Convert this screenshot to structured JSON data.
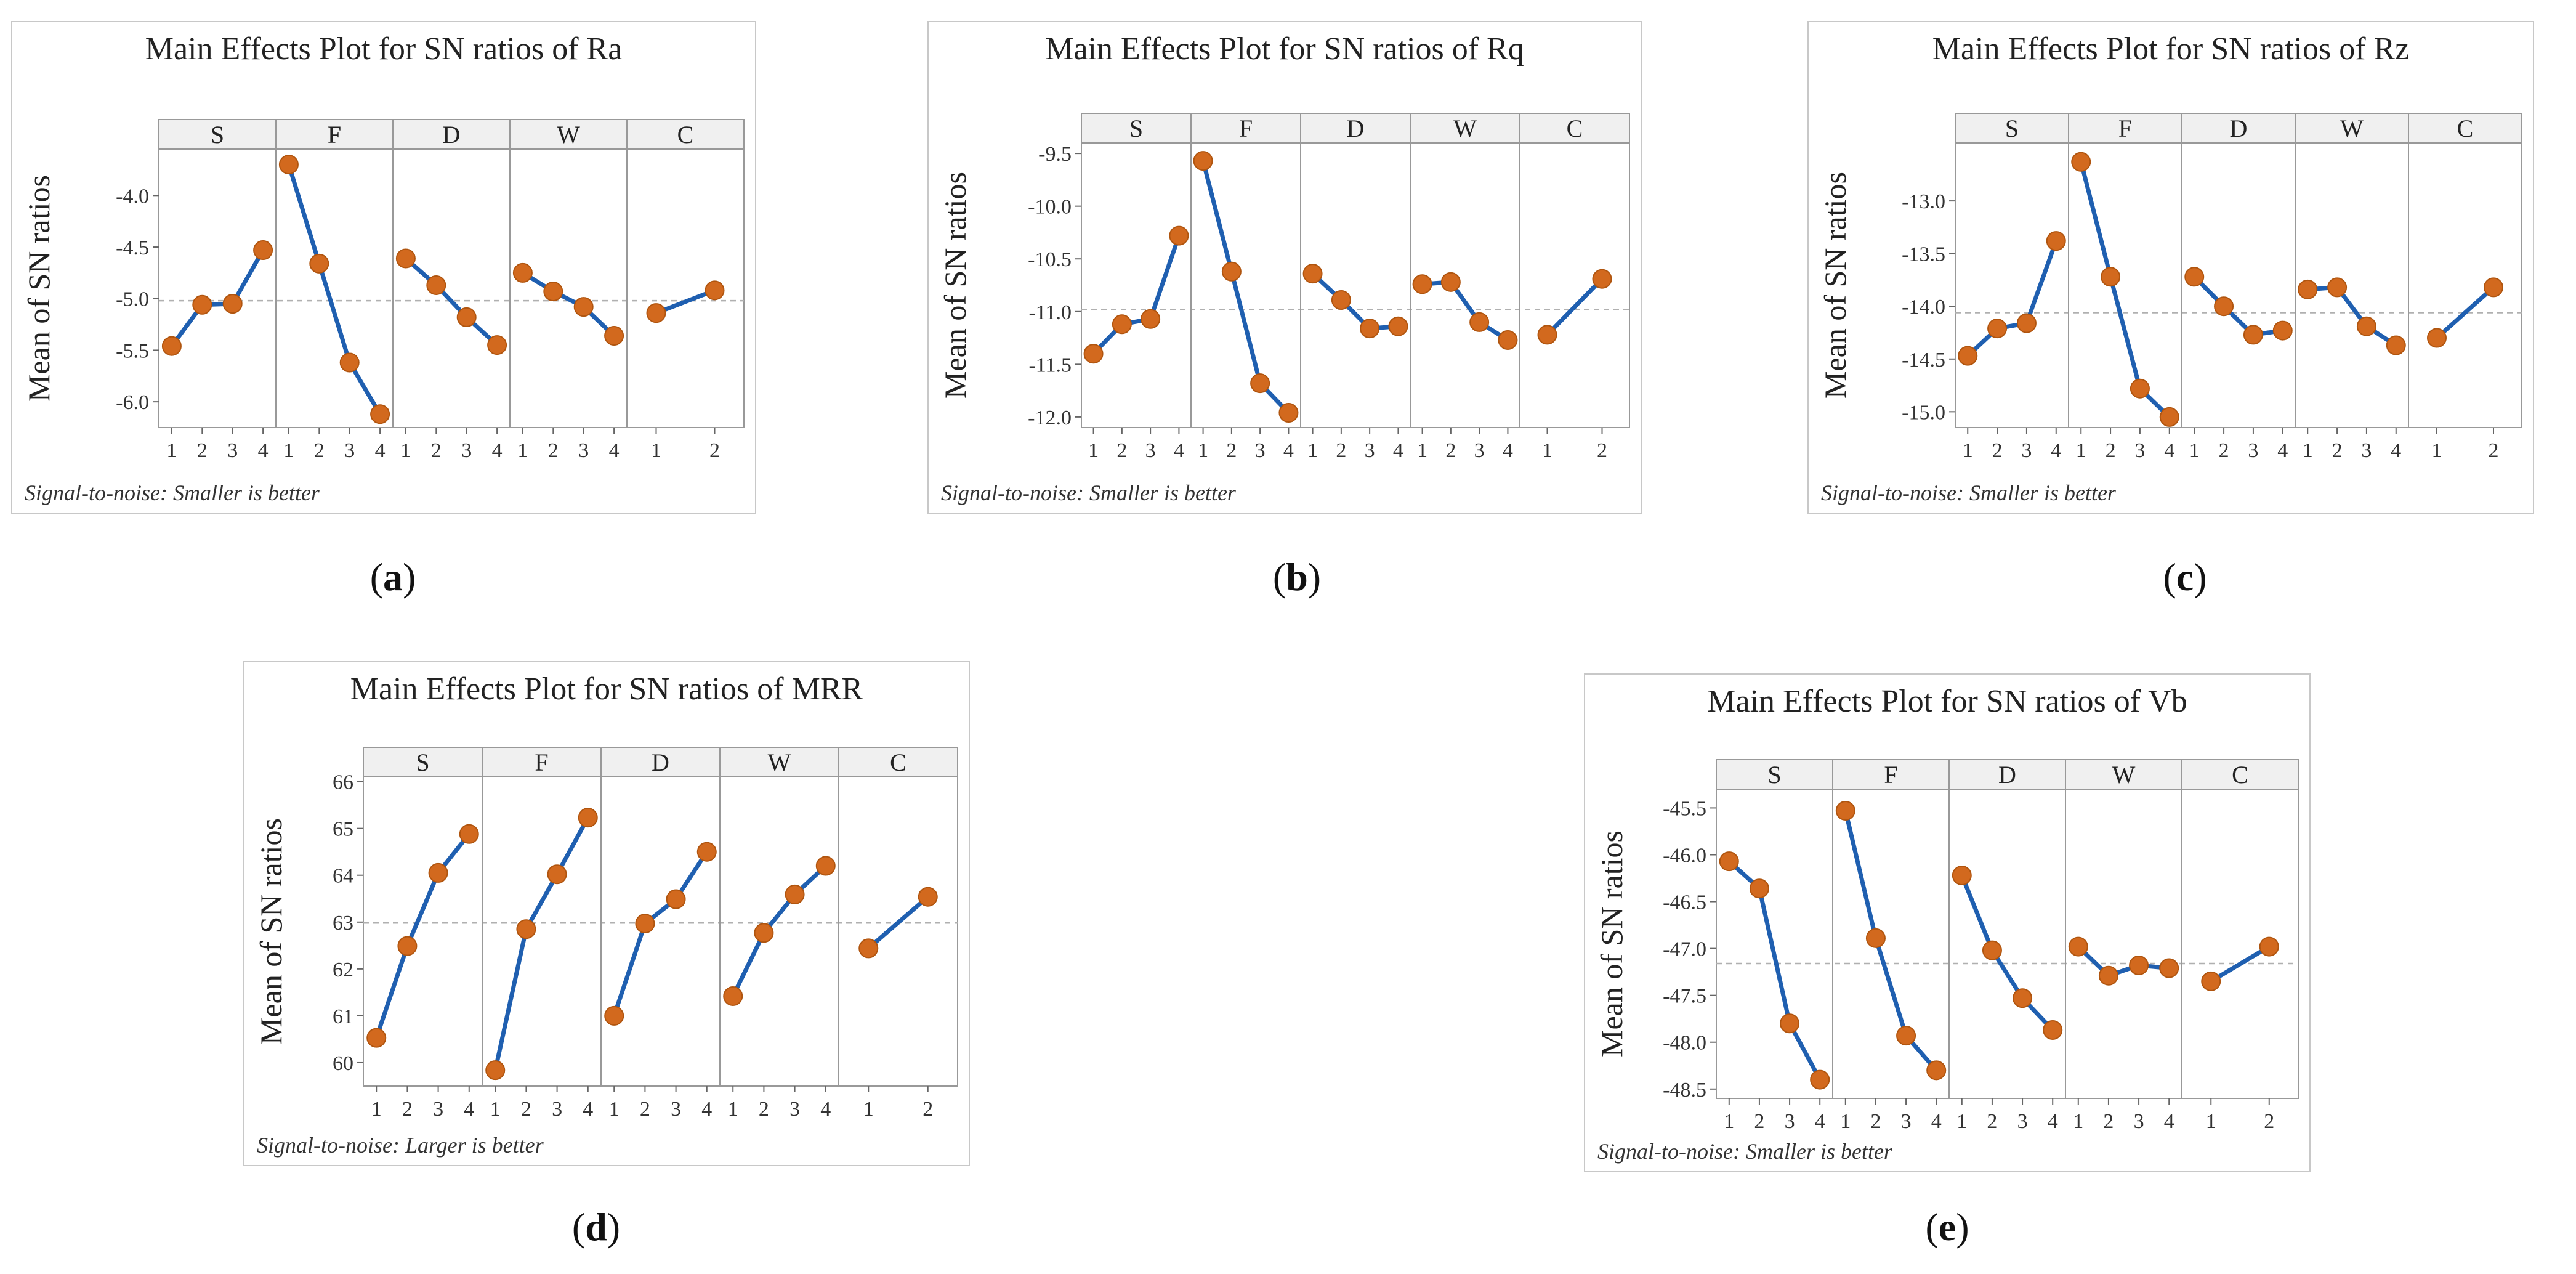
{
  "figure_captions": [
    "a",
    "b",
    "c",
    "d",
    "e"
  ],
  "style": {
    "line_color": "#1f5fb0",
    "marker_color": "#d2691e",
    "marker_edge": "#b0550f",
    "ref_line_color": "#b0b0b0",
    "frame_color": "#c8c8c8",
    "strip_color": "#f0f0f0"
  },
  "chart_data": [
    {
      "id": "a",
      "type": "line",
      "title": "Main Effects Plot for SN ratios of Ra",
      "ylabel": "Mean of SN ratios",
      "footer": "Signal-to-noise: Smaller is better",
      "ylim": [
        -6.25,
        -3.55
      ],
      "yticks": [
        -4.0,
        -4.5,
        -5.0,
        -5.5,
        -6.0
      ],
      "ytick_labels": [
        "-4.0",
        "-4.5",
        "-5.0",
        "-5.5",
        "-6.0"
      ],
      "reference": -5.02,
      "factors": [
        {
          "name": "S",
          "levels": [
            "1",
            "2",
            "3",
            "4"
          ],
          "values": [
            -5.46,
            -5.06,
            -5.05,
            -4.53
          ]
        },
        {
          "name": "F",
          "levels": [
            "1",
            "2",
            "3",
            "4"
          ],
          "values": [
            -3.7,
            -4.66,
            -5.62,
            -6.12
          ]
        },
        {
          "name": "D",
          "levels": [
            "1",
            "2",
            "3",
            "4"
          ],
          "values": [
            -4.61,
            -4.87,
            -5.18,
            -5.45
          ]
        },
        {
          "name": "W",
          "levels": [
            "1",
            "2",
            "3",
            "4"
          ],
          "values": [
            -4.75,
            -4.93,
            -5.08,
            -5.36
          ]
        },
        {
          "name": "C",
          "levels": [
            "1",
            "2"
          ],
          "values": [
            -5.14,
            -4.92
          ]
        }
      ]
    },
    {
      "id": "b",
      "type": "line",
      "title": "Main Effects Plot for SN ratios of Rq",
      "ylabel": "Mean of SN ratios",
      "footer": "Signal-to-noise: Smaller is better",
      "ylim": [
        -12.1,
        -9.4
      ],
      "yticks": [
        -9.5,
        -10.0,
        -10.5,
        -11.0,
        -11.5,
        -12.0
      ],
      "ytick_labels": [
        "-9.5",
        "-10.0",
        "-10.5",
        "-11.0",
        "-11.5",
        "-12.0"
      ],
      "reference": -10.98,
      "factors": [
        {
          "name": "S",
          "levels": [
            "1",
            "2",
            "3",
            "4"
          ],
          "values": [
            -11.4,
            -11.12,
            -11.07,
            -10.28
          ]
        },
        {
          "name": "F",
          "levels": [
            "1",
            "2",
            "3",
            "4"
          ],
          "values": [
            -9.57,
            -10.62,
            -11.68,
            -11.96
          ]
        },
        {
          "name": "D",
          "levels": [
            "1",
            "2",
            "3",
            "4"
          ],
          "values": [
            -10.64,
            -10.89,
            -11.16,
            -11.14
          ]
        },
        {
          "name": "W",
          "levels": [
            "1",
            "2",
            "3",
            "4"
          ],
          "values": [
            -10.74,
            -10.72,
            -11.1,
            -11.27
          ]
        },
        {
          "name": "C",
          "levels": [
            "1",
            "2"
          ],
          "values": [
            -11.22,
            -10.69
          ]
        }
      ]
    },
    {
      "id": "c",
      "type": "line",
      "title": "Main Effects Plot for SN ratios of Rz",
      "ylabel": "Mean of SN ratios",
      "footer": "Signal-to-noise: Smaller is better",
      "ylim": [
        -15.15,
        -12.45
      ],
      "yticks": [
        -13.0,
        -13.5,
        -14.0,
        -14.5,
        -15.0
      ],
      "ytick_labels": [
        "-13.0",
        "-13.5",
        "-14.0",
        "-14.5",
        "-15.0"
      ],
      "reference": -14.06,
      "factors": [
        {
          "name": "S",
          "levels": [
            "1",
            "2",
            "3",
            "4"
          ],
          "values": [
            -14.47,
            -14.21,
            -14.16,
            -13.38
          ]
        },
        {
          "name": "F",
          "levels": [
            "1",
            "2",
            "3",
            "4"
          ],
          "values": [
            -12.63,
            -13.72,
            -14.78,
            -15.05
          ]
        },
        {
          "name": "D",
          "levels": [
            "1",
            "2",
            "3",
            "4"
          ],
          "values": [
            -13.72,
            -14.0,
            -14.27,
            -14.23
          ]
        },
        {
          "name": "W",
          "levels": [
            "1",
            "2",
            "3",
            "4"
          ],
          "values": [
            -13.84,
            -13.82,
            -14.19,
            -14.37
          ]
        },
        {
          "name": "C",
          "levels": [
            "1",
            "2"
          ],
          "values": [
            -14.3,
            -13.82
          ]
        }
      ]
    },
    {
      "id": "d",
      "type": "line",
      "title": "Main Effects Plot for SN ratios of MRR",
      "ylabel": "Mean of SN ratios",
      "footer": "Signal-to-noise: Larger is better",
      "ylim": [
        59.5,
        66.1
      ],
      "yticks": [
        60,
        61,
        62,
        63,
        64,
        65,
        66
      ],
      "ytick_labels": [
        "60",
        "61",
        "62",
        "63",
        "64",
        "65",
        "66"
      ],
      "reference": 62.98,
      "factors": [
        {
          "name": "S",
          "levels": [
            "1",
            "2",
            "3",
            "4"
          ],
          "values": [
            60.53,
            62.49,
            64.05,
            64.88
          ]
        },
        {
          "name": "F",
          "levels": [
            "1",
            "2",
            "3",
            "4"
          ],
          "values": [
            59.84,
            62.85,
            64.02,
            65.23
          ]
        },
        {
          "name": "D",
          "levels": [
            "1",
            "2",
            "3",
            "4"
          ],
          "values": [
            61.0,
            62.97,
            63.49,
            64.5
          ]
        },
        {
          "name": "W",
          "levels": [
            "1",
            "2",
            "3",
            "4"
          ],
          "values": [
            61.42,
            62.77,
            63.59,
            64.2
          ]
        },
        {
          "name": "C",
          "levels": [
            "1",
            "2"
          ],
          "values": [
            62.44,
            63.54
          ]
        }
      ]
    },
    {
      "id": "e",
      "type": "line",
      "title": "Main Effects Plot for SN ratios of Vb",
      "ylabel": "Mean of SN ratios",
      "footer": "Signal-to-noise: Smaller is better",
      "ylim": [
        -48.6,
        -45.3
      ],
      "yticks": [
        -45.5,
        -46.0,
        -46.5,
        -47.0,
        -47.5,
        -48.0,
        -48.5
      ],
      "ytick_labels": [
        "-45.5",
        "-46.0",
        "-46.5",
        "-47.0",
        "-47.5",
        "-48.0",
        "-48.5"
      ],
      "reference": -47.16,
      "factors": [
        {
          "name": "S",
          "levels": [
            "1",
            "2",
            "3",
            "4"
          ],
          "values": [
            -46.07,
            -46.36,
            -47.8,
            -48.4
          ]
        },
        {
          "name": "F",
          "levels": [
            "1",
            "2",
            "3",
            "4"
          ],
          "values": [
            -45.53,
            -46.89,
            -47.93,
            -48.3
          ]
        },
        {
          "name": "D",
          "levels": [
            "1",
            "2",
            "3",
            "4"
          ],
          "values": [
            -46.22,
            -47.02,
            -47.53,
            -47.87
          ]
        },
        {
          "name": "W",
          "levels": [
            "1",
            "2",
            "3",
            "4"
          ],
          "values": [
            -46.98,
            -47.29,
            -47.18,
            -47.21
          ]
        },
        {
          "name": "C",
          "levels": [
            "1",
            "2"
          ],
          "values": [
            -47.35,
            -46.98
          ]
        }
      ]
    }
  ]
}
